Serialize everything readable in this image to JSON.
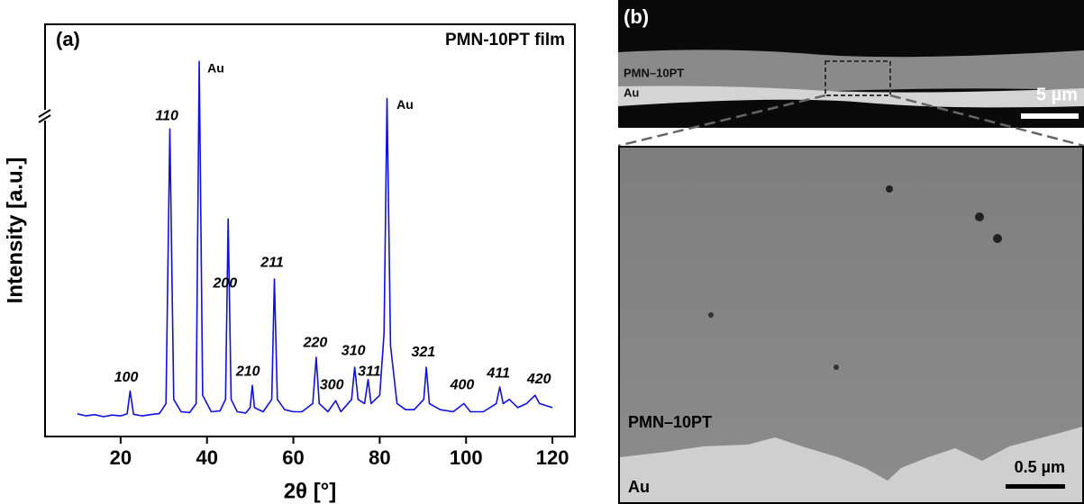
{
  "chart_data": {
    "type": "line",
    "panel_label": "(a)",
    "title": "PMN-10PT film",
    "x_label": "2θ [°]",
    "y_label": "Intensity [a.u.]",
    "xlim": [
      2.5,
      125.2
    ],
    "ylim": [
      0,
      100
    ],
    "xticks": [
      20,
      40,
      60,
      80,
      100,
      120
    ],
    "y_break": true,
    "series": [
      {
        "color": "#1010e0",
        "x": [
          10,
          12,
          14,
          16,
          18,
          20,
          21.5,
          22.2,
          23,
          25,
          27,
          29,
          30.5,
          31.4,
          32.3,
          34,
          36,
          37.5,
          38.2,
          39,
          41,
          43,
          44.3,
          44.9,
          45.6,
          47,
          49,
          50,
          50.5,
          51,
          53,
          55,
          55.6,
          56.3,
          58,
          60,
          62,
          64.5,
          65.3,
          66,
          68,
          69.8,
          71,
          73.5,
          74.2,
          75,
          76.5,
          77.3,
          78,
          80,
          81,
          81.7,
          82.5,
          84,
          86,
          88,
          90.2,
          90.8,
          91.5,
          94,
          97,
          99.5,
          101,
          104,
          107,
          107.8,
          108.6,
          110,
          112,
          114,
          116,
          117,
          120
        ],
        "values": [
          5.5,
          5,
          5.3,
          4.8,
          5.2,
          5,
          5.5,
          11,
          5.4,
          5,
          5.3,
          5.6,
          8,
          74.6,
          9,
          6,
          5.8,
          8,
          91,
          10,
          6,
          6.2,
          9,
          52.8,
          9,
          6,
          5.7,
          7,
          12.4,
          7,
          6,
          9,
          38.2,
          9,
          6.5,
          6,
          6,
          8,
          19.2,
          8,
          6,
          8.7,
          6,
          9,
          16.8,
          9,
          8,
          13.8,
          8,
          10,
          25,
          82,
          22,
          8,
          6.5,
          6.5,
          9,
          16.8,
          8,
          6.5,
          6,
          8,
          6,
          6,
          8,
          12,
          8,
          9,
          7,
          8,
          10,
          8,
          7
        ]
      }
    ],
    "annotations": [
      {
        "text": "100",
        "x": 21.3,
        "y": 14.2
      },
      {
        "text": "110",
        "x": 30.7,
        "y": 77.7
      },
      {
        "text": "Au",
        "x": 40.1,
        "y": 89.1,
        "anchor": "start"
      },
      {
        "text": "200",
        "x": 44.2,
        "y": 37.1
      },
      {
        "text": "210",
        "x": 49.5,
        "y": 15.7
      },
      {
        "text": "211",
        "x": 55.1,
        "y": 42.1
      },
      {
        "text": "220",
        "x": 65.1,
        "y": 22.7
      },
      {
        "text": "300",
        "x": 68.9,
        "y": 12.4
      },
      {
        "text": "310",
        "x": 73.9,
        "y": 20.7
      },
      {
        "text": "311",
        "x": 77.6,
        "y": 15.7
      },
      {
        "text": "Au",
        "x": 83.9,
        "y": 80.3,
        "anchor": "start"
      },
      {
        "text": "321",
        "x": 90.1,
        "y": 20.3
      },
      {
        "text": "400",
        "x": 99.1,
        "y": 12.4
      },
      {
        "text": "411",
        "x": 107.5,
        "y": 15.2
      },
      {
        "text": "420",
        "x": 116.9,
        "y": 13.8
      }
    ]
  },
  "panel_b": {
    "panel_label": "(b)",
    "top_image": {
      "layer_film": "PMN–10PT",
      "layer_substrate": "Au",
      "scale_bar": "5 µm"
    },
    "bottom_image": {
      "layer_film": "PMN–10PT",
      "layer_substrate": "Au",
      "scale_bar": "0.5 µm"
    }
  }
}
